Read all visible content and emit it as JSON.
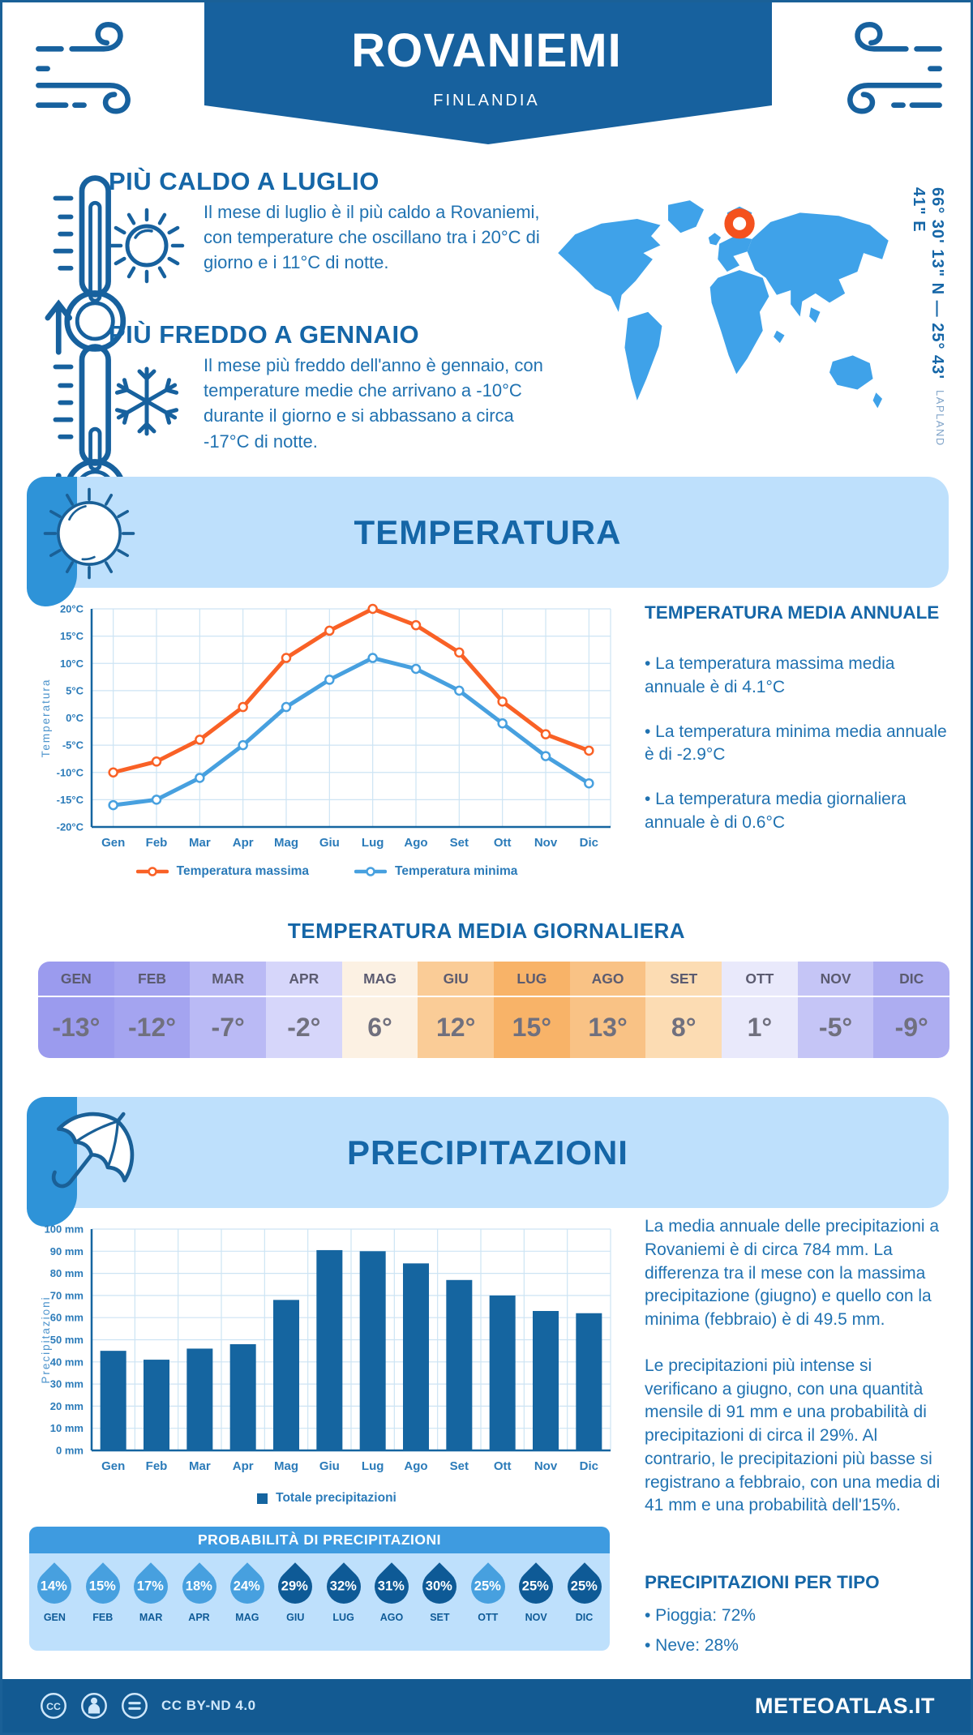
{
  "header": {
    "title": "ROVANIEMI",
    "subtitle": "FINLANDIA"
  },
  "highlights": [
    {
      "title": "PIÙ CALDO A LUGLIO",
      "icon": "thermometer-up-icon",
      "side_icon": "sun-icon",
      "text": "Il mese di luglio è il più caldo a Rovaniemi, con temperature che oscillano tra i 20°C di giorno e i 11°C di notte."
    },
    {
      "title": "PIÙ FREDDO A GENNAIO",
      "icon": "thermometer-down-icon",
      "side_icon": "snowflake-icon",
      "text": "Il mese più freddo dell'anno è gennaio, con temperature medie che arrivano a -10°C durante il giorno e si abbassano a circa -17°C di notte."
    }
  ],
  "map": {
    "coordinates": "66° 30' 13\" N — 25° 43' 41\" E",
    "region": "LAPLAND",
    "land_color": "#3FA2E9",
    "marker_color": "#F4511E"
  },
  "temperature": {
    "banner_title": "TEMPERATURA",
    "annual_title": "TEMPERATURA MEDIA ANNUALE",
    "annual_bullets": [
      "• La temperatura massima media annuale è di 4.1°C",
      "• La temperatura minima media annuale è di -2.9°C",
      "• La temperatura media giornaliera annuale è di 0.6°C"
    ],
    "daily_title": "TEMPERATURA MEDIA GIORNALIERA",
    "daily_months": [
      "GEN",
      "FEB",
      "MAR",
      "APR",
      "MAG",
      "GIU",
      "LUG",
      "AGO",
      "SET",
      "OTT",
      "NOV",
      "DIC"
    ],
    "daily_values": [
      "-13°",
      "-12°",
      "-7°",
      "-2°",
      "6°",
      "12°",
      "15°",
      "13°",
      "8°",
      "1°",
      "-5°",
      "-9°"
    ],
    "daily_colors": [
      "#9B9BEE",
      "#A4A4F0",
      "#BABAF5",
      "#D6D6FA",
      "#FCF1E3",
      "#FACC97",
      "#F8B368",
      "#F9C285",
      "#FCDCB3",
      "#E9E9FB",
      "#C5C5F6",
      "#ADADF1"
    ]
  },
  "precipitation": {
    "banner_title": "PRECIPITAZIONI",
    "paragraphs": [
      "La media annuale delle precipitazioni a Rovaniemi è di circa 784 mm. La differenza tra il mese con la massima precipitazione (giugno) e quello con la minima (febbraio) è di 49.5 mm.",
      "Le precipitazioni più intense si verificano a giugno, con una quantità mensile di 91 mm e una probabilità di precipitazioni di circa il 29%. Al contrario, le precipitazioni più basse si registrano a febbraio, con una media di 41 mm e una probabilità dell'15%."
    ],
    "probability": {
      "title": "PROBABILITÀ DI PRECIPITAZIONI",
      "months": [
        "GEN",
        "FEB",
        "MAR",
        "APR",
        "MAG",
        "GIU",
        "LUG",
        "AGO",
        "SET",
        "OTT",
        "NOV",
        "DIC"
      ],
      "values": [
        "14%",
        "15%",
        "17%",
        "18%",
        "24%",
        "29%",
        "32%",
        "31%",
        "30%",
        "25%",
        "25%",
        "25%"
      ],
      "dark": [
        false,
        false,
        false,
        false,
        false,
        true,
        true,
        true,
        true,
        false,
        true,
        true
      ],
      "drop_light": "#47A0DF",
      "drop_dark": "#0E5A96"
    },
    "by_type": {
      "title": "PRECIPITAZIONI PER TIPO",
      "bullets": [
        "• Pioggia: 72%",
        "• Neve: 28%"
      ]
    }
  },
  "chart_data": [
    {
      "type": "line",
      "categories": [
        "Gen",
        "Feb",
        "Mar",
        "Apr",
        "Mag",
        "Giu",
        "Lug",
        "Ago",
        "Set",
        "Ott",
        "Nov",
        "Dic"
      ],
      "series": [
        {
          "name": "Temperatura massima",
          "color": "#F96126",
          "values": [
            -10,
            -8,
            -4,
            2,
            11,
            16,
            20,
            17,
            12,
            3,
            -3,
            -6
          ]
        },
        {
          "name": "Temperatura minima",
          "color": "#47A0DF",
          "values": [
            -16,
            -15,
            -11,
            -5,
            2,
            7,
            11,
            9,
            5,
            -1,
            -7,
            -12
          ]
        }
      ],
      "ylabel": "Temperatura",
      "xlabel": "",
      "ylim": [
        -20,
        20
      ],
      "ytick_step": 5,
      "ytick_suffix": "°C",
      "grid": true,
      "legend_position": "bottom"
    },
    {
      "type": "bar",
      "categories": [
        "Gen",
        "Feb",
        "Mar",
        "Apr",
        "Mag",
        "Giu",
        "Lug",
        "Ago",
        "Set",
        "Ott",
        "Nov",
        "Dic"
      ],
      "series": [
        {
          "name": "Totale precipitazioni",
          "color": "#1565A0",
          "values": [
            45,
            41,
            46,
            48,
            68,
            90.5,
            90,
            84.5,
            77,
            70,
            63,
            62
          ]
        }
      ],
      "ylabel": "Precipitazioni",
      "xlabel": "",
      "ylim": [
        0,
        100
      ],
      "ytick_step": 10,
      "ytick_suffix": " mm",
      "grid": true,
      "legend_position": "bottom"
    }
  ],
  "footer": {
    "license": "CC BY-ND 4.0",
    "site": "METEOATLAS.IT"
  },
  "colors": {
    "primary_dark": "#17619E",
    "heading_blue": "#1566A7",
    "body_blue": "#2072B1",
    "banner_light": "#BEE0FC",
    "wedge_blue": "#2E93D8",
    "grid_blue": "#CDE4F4",
    "axis_blue": "#1565A0",
    "tick_blue": "#2B7BB9",
    "footer_blue": "#135A92"
  }
}
